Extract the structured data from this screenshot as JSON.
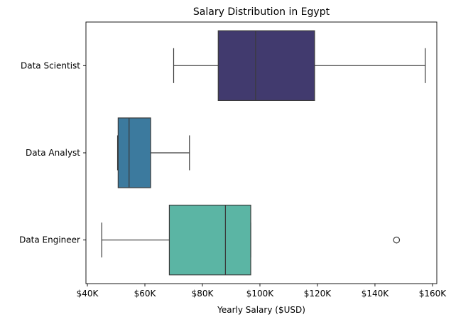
{
  "chart_data": {
    "type": "box",
    "orientation": "horizontal",
    "title": "Salary Distribution in Egypt",
    "xlabel": "Yearly Salary ($USD)",
    "ylabel": "",
    "xlim": [
      39500,
      161500
    ],
    "xticks": [
      40000,
      60000,
      80000,
      100000,
      120000,
      140000,
      160000
    ],
    "xtick_labels": [
      "$40K",
      "$60K",
      "$80K",
      "$100K",
      "$120K",
      "$140K",
      "$160K"
    ],
    "grid": false,
    "legend": "none",
    "categories": [
      "Data Scientist",
      "Data Analyst",
      "Data Engineer"
    ],
    "boxes": [
      {
        "category": "Data Scientist",
        "whisker_low": 70000,
        "q1": 85500,
        "median": 98500,
        "q3": 119000,
        "whisker_high": 157500,
        "outliers": [],
        "color": "#413A6E"
      },
      {
        "category": "Data Analyst",
        "whisker_low": 50500,
        "q1": 50700,
        "median": 54500,
        "q3": 62000,
        "whisker_high": 75500,
        "outliers": [],
        "color": "#3C7A9E"
      },
      {
        "category": "Data Engineer",
        "whisker_low": 45000,
        "q1": 68500,
        "median": 88000,
        "q3": 96800,
        "whisker_high": 96800,
        "outliers": [
          147500
        ],
        "color": "#5BB5A4"
      }
    ],
    "edge_color": "#3a3a3a"
  }
}
